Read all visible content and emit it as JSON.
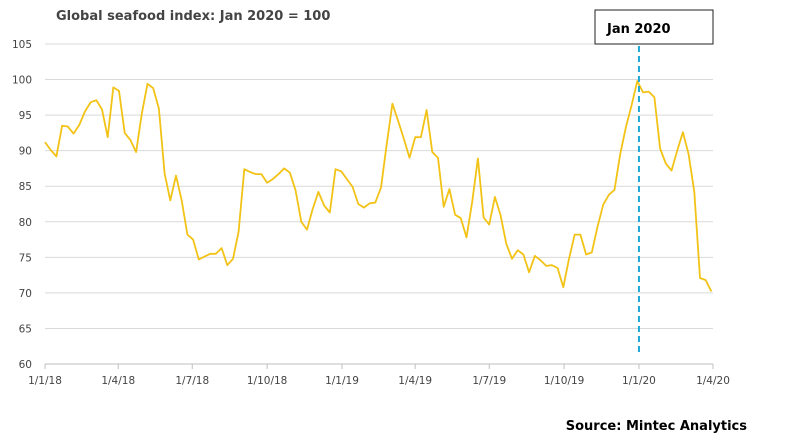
{
  "chart_data": {
    "type": "line",
    "title": "Global seafood index: Jan 2020 = 100",
    "source": "Source: Mintec Analytics",
    "xlabel": "",
    "ylabel": "",
    "ylim": [
      60,
      105
    ],
    "yticks": [
      60,
      65,
      70,
      75,
      80,
      85,
      90,
      95,
      100,
      105
    ],
    "xlim": [
      "2018-01-01",
      "2020-04-01"
    ],
    "xticks": [
      {
        "date": "2018-01-01",
        "label": "1/1/18"
      },
      {
        "date": "2018-04-01",
        "label": "1/4/18"
      },
      {
        "date": "2018-07-01",
        "label": "1/7/18"
      },
      {
        "date": "2018-10-01",
        "label": "1/10/18"
      },
      {
        "date": "2019-01-01",
        "label": "1/1/19"
      },
      {
        "date": "2019-04-01",
        "label": "1/4/19"
      },
      {
        "date": "2019-07-01",
        "label": "1/7/19"
      },
      {
        "date": "2019-10-01",
        "label": "1/10/19"
      },
      {
        "date": "2020-01-01",
        "label": "1/1/20"
      },
      {
        "date": "2020-04-01",
        "label": "1/4/20"
      }
    ],
    "grid": true,
    "legend": "none",
    "series_color": "#F2C316",
    "annotation": {
      "label": "Jan 2020",
      "date": "2020-01-01",
      "line_color": "#1EA8D8"
    },
    "series": [
      {
        "points": [
          [
            "2018-01-01",
            91.2
          ],
          [
            "2018-01-08",
            90.1
          ],
          [
            "2018-01-15",
            89.2
          ],
          [
            "2018-01-22",
            93.5
          ],
          [
            "2018-01-29",
            93.4
          ],
          [
            "2018-02-05",
            92.4
          ],
          [
            "2018-02-12",
            93.6
          ],
          [
            "2018-02-19",
            95.5
          ],
          [
            "2018-02-26",
            96.8
          ],
          [
            "2018-03-05",
            97.1
          ],
          [
            "2018-03-12",
            95.8
          ],
          [
            "2018-03-19",
            91.9
          ],
          [
            "2018-03-26",
            98.9
          ],
          [
            "2018-04-02",
            98.4
          ],
          [
            "2018-04-09",
            92.5
          ],
          [
            "2018-04-16",
            91.5
          ],
          [
            "2018-04-23",
            89.8
          ],
          [
            "2018-04-30",
            95.2
          ],
          [
            "2018-05-07",
            99.4
          ],
          [
            "2018-05-14",
            98.8
          ],
          [
            "2018-05-21",
            95.9
          ],
          [
            "2018-05-28",
            86.8
          ],
          [
            "2018-06-04",
            83.0
          ],
          [
            "2018-06-11",
            86.5
          ],
          [
            "2018-06-18",
            83.0
          ],
          [
            "2018-06-25",
            78.2
          ],
          [
            "2018-07-02",
            77.5
          ],
          [
            "2018-07-09",
            74.7
          ],
          [
            "2018-07-16",
            75.1
          ],
          [
            "2018-07-23",
            75.5
          ],
          [
            "2018-07-30",
            75.5
          ],
          [
            "2018-08-06",
            76.3
          ],
          [
            "2018-08-13",
            73.9
          ],
          [
            "2018-08-20",
            74.8
          ],
          [
            "2018-08-27",
            78.6
          ],
          [
            "2018-09-03",
            87.4
          ],
          [
            "2018-09-10",
            87.0
          ],
          [
            "2018-09-17",
            86.7
          ],
          [
            "2018-09-24",
            86.7
          ],
          [
            "2018-10-01",
            85.5
          ],
          [
            "2018-10-08",
            86.0
          ],
          [
            "2018-10-15",
            86.7
          ],
          [
            "2018-10-22",
            87.5
          ],
          [
            "2018-10-29",
            86.9
          ],
          [
            "2018-11-05",
            84.4
          ],
          [
            "2018-11-12",
            80.0
          ],
          [
            "2018-11-19",
            78.9
          ],
          [
            "2018-11-26",
            81.8
          ],
          [
            "2018-12-03",
            84.2
          ],
          [
            "2018-12-10",
            82.3
          ],
          [
            "2018-12-17",
            81.3
          ],
          [
            "2018-12-24",
            87.4
          ],
          [
            "2018-12-31",
            87.1
          ],
          [
            "2019-01-07",
            86.0
          ],
          [
            "2019-01-14",
            84.9
          ],
          [
            "2019-01-21",
            82.5
          ],
          [
            "2019-01-28",
            82.0
          ],
          [
            "2019-02-04",
            82.6
          ],
          [
            "2019-02-11",
            82.7
          ],
          [
            "2019-02-18",
            84.8
          ],
          [
            "2019-02-25",
            90.9
          ],
          [
            "2019-03-04",
            96.6
          ],
          [
            "2019-03-11",
            94.2
          ],
          [
            "2019-03-18",
            91.7
          ],
          [
            "2019-03-25",
            89.0
          ],
          [
            "2019-04-01",
            91.9
          ],
          [
            "2019-04-08",
            91.9
          ],
          [
            "2019-04-15",
            95.7
          ],
          [
            "2019-04-22",
            89.8
          ],
          [
            "2019-04-29",
            89.0
          ],
          [
            "2019-05-06",
            82.1
          ],
          [
            "2019-05-13",
            84.6
          ],
          [
            "2019-05-20",
            81.0
          ],
          [
            "2019-05-27",
            80.5
          ],
          [
            "2019-06-03",
            77.8
          ],
          [
            "2019-06-10",
            82.8
          ],
          [
            "2019-06-17",
            88.9
          ],
          [
            "2019-06-24",
            80.6
          ],
          [
            "2019-07-01",
            79.6
          ],
          [
            "2019-07-08",
            83.5
          ],
          [
            "2019-07-15",
            80.9
          ],
          [
            "2019-07-22",
            76.9
          ],
          [
            "2019-07-29",
            74.8
          ],
          [
            "2019-08-05",
            76.0
          ],
          [
            "2019-08-12",
            75.4
          ],
          [
            "2019-08-19",
            72.9
          ],
          [
            "2019-08-26",
            75.2
          ],
          [
            "2019-09-02",
            74.6
          ],
          [
            "2019-09-09",
            73.8
          ],
          [
            "2019-09-16",
            73.9
          ],
          [
            "2019-09-23",
            73.5
          ],
          [
            "2019-09-30",
            70.8
          ],
          [
            "2019-10-07",
            74.8
          ],
          [
            "2019-10-14",
            78.2
          ],
          [
            "2019-10-21",
            78.2
          ],
          [
            "2019-10-28",
            75.4
          ],
          [
            "2019-11-04",
            75.7
          ],
          [
            "2019-11-11",
            79.3
          ],
          [
            "2019-11-18",
            82.4
          ],
          [
            "2019-11-25",
            83.8
          ],
          [
            "2019-12-02",
            84.5
          ],
          [
            "2019-12-09",
            89.5
          ],
          [
            "2019-12-16",
            93.3
          ],
          [
            "2019-12-23",
            96.4
          ],
          [
            "2019-12-30",
            99.8
          ],
          [
            "2020-01-06",
            98.2
          ],
          [
            "2020-01-13",
            98.3
          ],
          [
            "2020-01-20",
            97.5
          ],
          [
            "2020-01-27",
            90.3
          ],
          [
            "2020-02-03",
            88.2
          ],
          [
            "2020-02-10",
            87.2
          ],
          [
            "2020-02-17",
            90.0
          ],
          [
            "2020-02-24",
            92.6
          ],
          [
            "2020-03-02",
            89.5
          ],
          [
            "2020-03-09",
            84.2
          ],
          [
            "2020-03-16",
            72.1
          ],
          [
            "2020-03-23",
            71.8
          ],
          [
            "2020-03-30",
            70.2
          ]
        ]
      }
    ]
  }
}
